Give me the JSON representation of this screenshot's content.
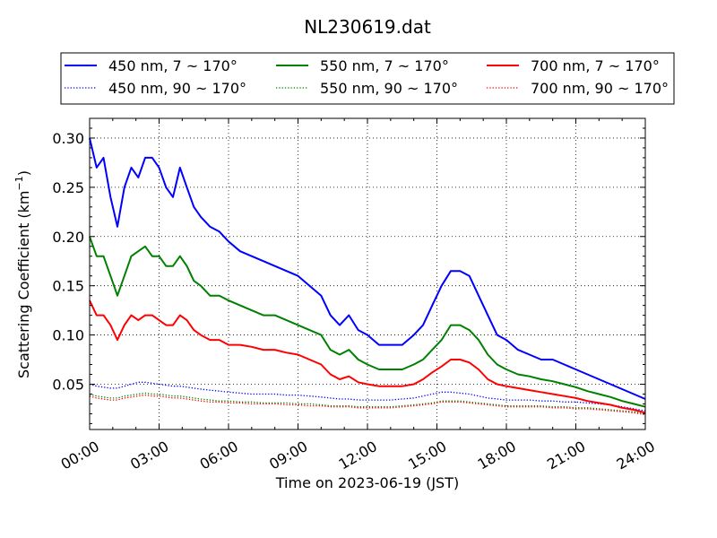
{
  "chart_data": {
    "type": "line",
    "title": "NL230619.dat",
    "xlabel": "Time on 2023-06-19 (JST)",
    "ylabel_prefix": "Scattering Coefficient (km",
    "ylabel_exp": "−1",
    "ylabel_suffix": ")",
    "xlim": [
      0,
      24
    ],
    "ylim": [
      0.004,
      0.32
    ],
    "grid": true,
    "legend_placement": "top (above plot, 3 columns)",
    "xticks": [
      0,
      3,
      6,
      9,
      12,
      15,
      18,
      21,
      24
    ],
    "xtick_labels": [
      "00:00",
      "03:00",
      "06:00",
      "09:00",
      "12:00",
      "15:00",
      "18:00",
      "21:00",
      "24:00"
    ],
    "yticks": [
      0.05,
      0.1,
      0.15,
      0.2,
      0.25,
      0.3
    ],
    "ytick_labels": [
      "0.05",
      "0.10",
      "0.15",
      "0.20",
      "0.25",
      "0.30"
    ],
    "x": [
      0.0,
      0.3,
      0.6,
      0.9,
      1.2,
      1.5,
      1.8,
      2.1,
      2.4,
      2.7,
      3.0,
      3.3,
      3.6,
      3.9,
      4.2,
      4.5,
      4.8,
      5.2,
      5.6,
      6.0,
      6.5,
      7.0,
      7.5,
      8.0,
      8.5,
      9.0,
      9.5,
      10.0,
      10.4,
      10.8,
      11.2,
      11.6,
      12.0,
      12.5,
      13.0,
      13.5,
      14.0,
      14.4,
      14.8,
      15.2,
      15.6,
      16.0,
      16.4,
      16.8,
      17.2,
      17.6,
      18.0,
      18.5,
      19.0,
      19.5,
      20.0,
      20.5,
      21.0,
      21.5,
      22.0,
      22.5,
      23.0,
      23.5,
      24.0
    ],
    "series": [
      {
        "name": "450 nm, 7 ~ 170°",
        "color": "#0000ff",
        "style": "solid",
        "values": [
          0.3,
          0.27,
          0.28,
          0.24,
          0.21,
          0.25,
          0.27,
          0.26,
          0.28,
          0.28,
          0.27,
          0.25,
          0.24,
          0.27,
          0.25,
          0.23,
          0.22,
          0.21,
          0.205,
          0.195,
          0.185,
          0.18,
          0.175,
          0.17,
          0.165,
          0.16,
          0.15,
          0.14,
          0.12,
          0.11,
          0.12,
          0.105,
          0.1,
          0.09,
          0.09,
          0.09,
          0.1,
          0.11,
          0.13,
          0.15,
          0.165,
          0.165,
          0.16,
          0.14,
          0.12,
          0.1,
          0.095,
          0.085,
          0.08,
          0.075,
          0.075,
          0.07,
          0.065,
          0.06,
          0.055,
          0.05,
          0.045,
          0.04,
          0.035
        ]
      },
      {
        "name": "450 nm, 90 ~ 170°",
        "color": "#0000ff",
        "style": "dotted",
        "values": [
          0.05,
          0.048,
          0.047,
          0.046,
          0.046,
          0.048,
          0.05,
          0.052,
          0.052,
          0.051,
          0.05,
          0.049,
          0.048,
          0.048,
          0.047,
          0.046,
          0.045,
          0.044,
          0.043,
          0.042,
          0.041,
          0.04,
          0.04,
          0.04,
          0.039,
          0.039,
          0.038,
          0.037,
          0.036,
          0.035,
          0.035,
          0.034,
          0.034,
          0.034,
          0.034,
          0.035,
          0.036,
          0.038,
          0.04,
          0.042,
          0.042,
          0.041,
          0.04,
          0.038,
          0.036,
          0.035,
          0.034,
          0.034,
          0.034,
          0.033,
          0.033,
          0.032,
          0.032,
          0.031,
          0.03,
          0.029,
          0.027,
          0.025,
          0.023
        ]
      },
      {
        "name": "550 nm, 7 ~ 170°",
        "color": "#008000",
        "style": "solid",
        "values": [
          0.2,
          0.18,
          0.18,
          0.16,
          0.14,
          0.16,
          0.18,
          0.185,
          0.19,
          0.18,
          0.18,
          0.17,
          0.17,
          0.18,
          0.17,
          0.155,
          0.15,
          0.14,
          0.14,
          0.135,
          0.13,
          0.125,
          0.12,
          0.12,
          0.115,
          0.11,
          0.105,
          0.1,
          0.085,
          0.08,
          0.085,
          0.075,
          0.07,
          0.065,
          0.065,
          0.065,
          0.07,
          0.075,
          0.085,
          0.095,
          0.11,
          0.11,
          0.105,
          0.095,
          0.08,
          0.07,
          0.065,
          0.06,
          0.058,
          0.055,
          0.053,
          0.05,
          0.047,
          0.043,
          0.04,
          0.037,
          0.033,
          0.03,
          0.027
        ]
      },
      {
        "name": "550 nm, 90 ~ 170°",
        "color": "#008000",
        "style": "dotted",
        "values": [
          0.04,
          0.038,
          0.037,
          0.036,
          0.036,
          0.038,
          0.039,
          0.04,
          0.041,
          0.04,
          0.04,
          0.039,
          0.038,
          0.038,
          0.037,
          0.036,
          0.035,
          0.034,
          0.033,
          0.033,
          0.032,
          0.032,
          0.031,
          0.031,
          0.031,
          0.03,
          0.03,
          0.029,
          0.028,
          0.028,
          0.028,
          0.027,
          0.027,
          0.027,
          0.027,
          0.028,
          0.029,
          0.03,
          0.031,
          0.033,
          0.033,
          0.033,
          0.032,
          0.031,
          0.03,
          0.029,
          0.028,
          0.028,
          0.028,
          0.028,
          0.027,
          0.027,
          0.026,
          0.026,
          0.025,
          0.024,
          0.023,
          0.022,
          0.02
        ]
      },
      {
        "name": "700 nm, 7 ~ 170°",
        "color": "#ff0000",
        "style": "solid",
        "values": [
          0.135,
          0.12,
          0.12,
          0.11,
          0.095,
          0.11,
          0.12,
          0.115,
          0.12,
          0.12,
          0.115,
          0.11,
          0.11,
          0.12,
          0.115,
          0.105,
          0.1,
          0.095,
          0.095,
          0.09,
          0.09,
          0.088,
          0.085,
          0.085,
          0.082,
          0.08,
          0.075,
          0.07,
          0.06,
          0.055,
          0.058,
          0.052,
          0.05,
          0.048,
          0.048,
          0.048,
          0.05,
          0.055,
          0.062,
          0.068,
          0.075,
          0.075,
          0.072,
          0.065,
          0.055,
          0.05,
          0.048,
          0.046,
          0.044,
          0.042,
          0.04,
          0.038,
          0.036,
          0.033,
          0.031,
          0.029,
          0.026,
          0.024,
          0.021
        ]
      },
      {
        "name": "700 nm, 90 ~ 170°",
        "color": "#ff0000",
        "style": "dotted",
        "values": [
          0.038,
          0.036,
          0.035,
          0.034,
          0.034,
          0.036,
          0.037,
          0.038,
          0.039,
          0.038,
          0.038,
          0.037,
          0.036,
          0.036,
          0.035,
          0.034,
          0.033,
          0.032,
          0.032,
          0.031,
          0.031,
          0.03,
          0.03,
          0.03,
          0.029,
          0.029,
          0.028,
          0.028,
          0.027,
          0.027,
          0.027,
          0.026,
          0.026,
          0.026,
          0.026,
          0.027,
          0.028,
          0.029,
          0.03,
          0.032,
          0.032,
          0.032,
          0.031,
          0.03,
          0.029,
          0.028,
          0.027,
          0.027,
          0.027,
          0.027,
          0.026,
          0.026,
          0.025,
          0.025,
          0.024,
          0.023,
          0.022,
          0.021,
          0.019
        ]
      }
    ]
  }
}
